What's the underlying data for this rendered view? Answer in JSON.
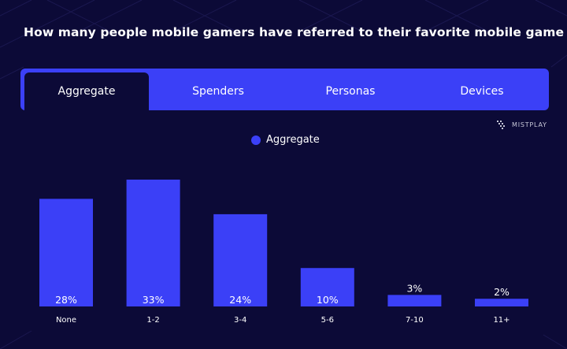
{
  "title": "How many people mobile gamers have referred to their favorite mobile game",
  "tabs": [
    {
      "label": "Aggregate",
      "active": true
    },
    {
      "label": "Spenders",
      "active": false
    },
    {
      "label": "Personas",
      "active": false
    },
    {
      "label": "Devices",
      "active": false
    }
  ],
  "brand": "MISTPLAY",
  "colors": {
    "background": "#0c0a37",
    "accent": "#3b40f7",
    "text": "#ffffff"
  },
  "chart_data": {
    "type": "bar",
    "categories": [
      "None",
      "1-2",
      "3-4",
      "5-6",
      "7-10",
      "11+"
    ],
    "series": [
      {
        "name": "Aggregate",
        "values": [
          28,
          33,
          24,
          10,
          3,
          2
        ],
        "labels": [
          "28%",
          "33%",
          "24%",
          "10%",
          "3%",
          "2%"
        ]
      }
    ],
    "ylim": [
      0,
      33
    ],
    "legend": "top-center",
    "grid": false
  }
}
